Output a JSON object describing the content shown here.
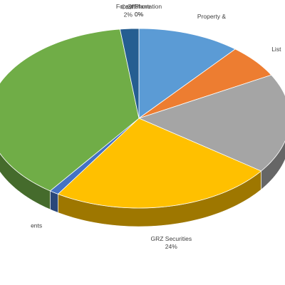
{
  "chart_data": {
    "type": "pie3d",
    "categories": [
      "Forest Plantation",
      "Offshore",
      "Property &",
      "List",
      null,
      "GRZ Securities",
      "ents",
      null,
      "Cash"
    ],
    "values": [
      0,
      0,
      11,
      6,
      18,
      24,
      1,
      38,
      2
    ],
    "value_labels": [
      "0%",
      "0%",
      null,
      null,
      null,
      "24%",
      null,
      null,
      "2%"
    ],
    "colors": [
      "#ed7d31",
      "#a5a5a5",
      "#5b9bd5",
      "#ed7d31",
      "#a5a5a5",
      "#ffc000",
      "#4472c4",
      "#70ad47",
      "#255e91"
    ]
  }
}
